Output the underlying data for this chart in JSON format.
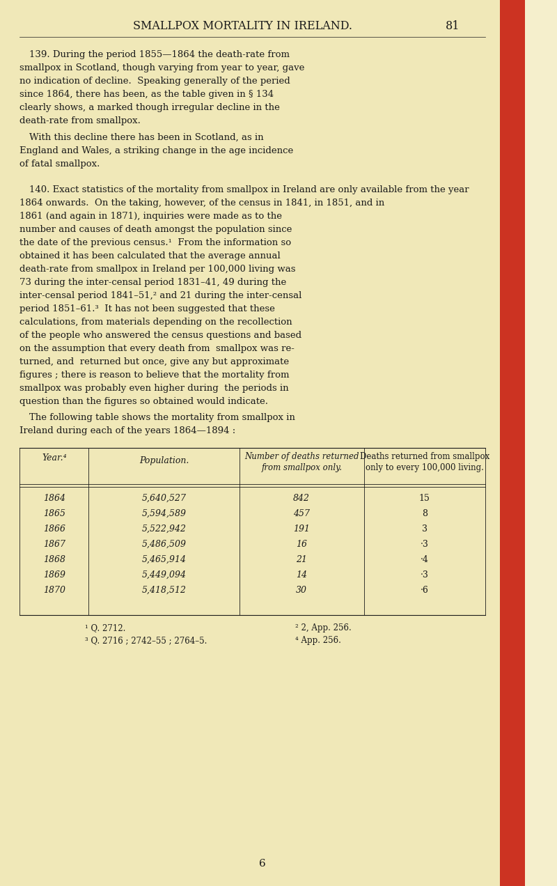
{
  "bg_color": "#f5efcc",
  "page_color": "#f0e8b8",
  "header_text": "SMALLPOX MORTALITY IN IRELAND.",
  "page_number": "81",
  "text_color": "#1a1a1a",
  "border_color": "#cc3322",
  "p139": [
    "139. During the period 1855—1864 the death-rate from",
    "smallpox in Scotland, though varying from year to year, gave",
    "no indication of decline.  Speaking generally of the peried",
    "since 1864, there has been, as the table given in § 134",
    "clearly shows, a marked though irregular decline in the",
    "death-rate from smallpox."
  ],
  "p139b": [
    "With this decline there has been in Scotland, as in",
    "England and Wales, a striking change in the age incidence",
    "of fatal smallpox."
  ],
  "p140": [
    "140. Exact statistics of the mortality from smallpox in Ireland are only available from the year",
    "1864 onwards.  On the taking, however, of the census in 1841, in 1851, and in",
    "1861 (and again in 1871), inquiries were made as to the",
    "number and causes of death amongst the population since",
    "the date of the previous census.¹  From the information so",
    "obtained it has been calculated that the average annual",
    "death-rate from smallpox in Ireland per 100,000 living was",
    "73 during the inter-censal period 1831–41, 49 during the",
    "inter-censal period 1841–51,² and 21 during the inter-censal",
    "period 1851–61.³  It has not been suggested that these",
    "calculations, from materials depending on the recollection",
    "of the people who answered the census questions and based",
    "on the assumption that every death from  smallpox was re-",
    "turned, and  returned but once, give any but approximate",
    "figures ; there is reason to believe that the mortality from",
    "smallpox was probably even higher during  the periods in",
    "question than the figures so obtained would indicate."
  ],
  "p140b": [
    "The following table shows the mortality from smallpox in",
    "Ireland during each of the years 1864—1894 :"
  ],
  "table_data": [
    [
      "1864",
      "5,640,527",
      "842",
      "15"
    ],
    [
      "1865",
      "5,594,589",
      "457",
      "8"
    ],
    [
      "1866",
      "5,522,942",
      "191",
      "3"
    ],
    [
      "1867",
      "5,486,509",
      "16",
      "·3"
    ],
    [
      "1868",
      "5,465,914",
      "21",
      "·4"
    ],
    [
      "1869",
      "5,449,094",
      "14",
      "·3"
    ],
    [
      "1870",
      "5,418,512",
      "30",
      "·6"
    ]
  ],
  "col_header1": "Year.⁴",
  "col_header2": "Population.",
  "col_header3a": "Number of deaths returned",
  "col_header3b": "from smallpox only.",
  "col_header4a": "Deaths returned from smallpox",
  "col_header4b": "only to every 100,000 living.",
  "footnote1": "¹ Q. 2712.",
  "footnote2": "² 2, App. 256.",
  "footnote3": "³ Q. 2716 ; 2742–55 ; 2764–5.",
  "footnote4": "⁴ App. 256.",
  "page_num_bottom": "6"
}
